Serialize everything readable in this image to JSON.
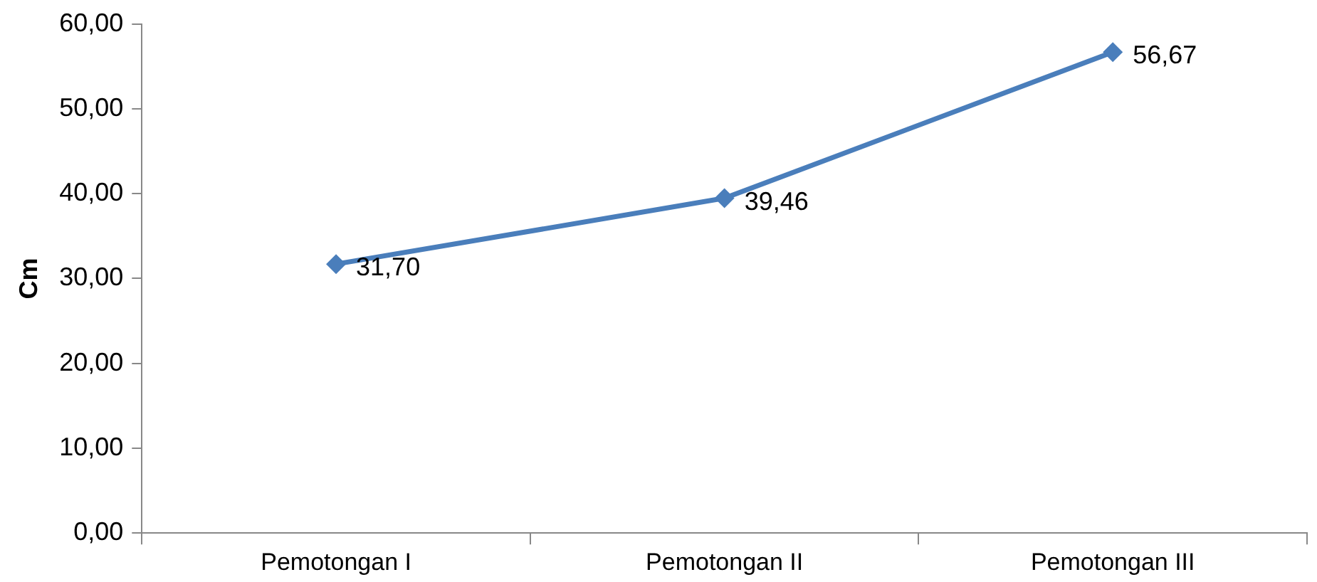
{
  "chart_data": {
    "type": "line",
    "ylabel": "Cm",
    "categories": [
      "Pemotongan I",
      "Pemotongan II",
      "Pemotongan III"
    ],
    "series": [
      {
        "color": "#4a7ebb",
        "values": [
          31.7,
          39.46,
          56.67
        ],
        "value_labels": [
          "31,70",
          "39,46",
          "56,67"
        ]
      }
    ],
    "ylim": [
      0,
      60
    ],
    "yticks": [
      {
        "value": 0,
        "label": "0,00"
      },
      {
        "value": 10,
        "label": "10,00"
      },
      {
        "value": 20,
        "label": "20,00"
      },
      {
        "value": 30,
        "label": "30,00"
      },
      {
        "value": 40,
        "label": "40,00"
      },
      {
        "value": 50,
        "label": "50,00"
      },
      {
        "value": 60,
        "label": "60,00"
      }
    ],
    "grid": false,
    "legend": false,
    "marker": "diamond",
    "line_style": "solid"
  }
}
